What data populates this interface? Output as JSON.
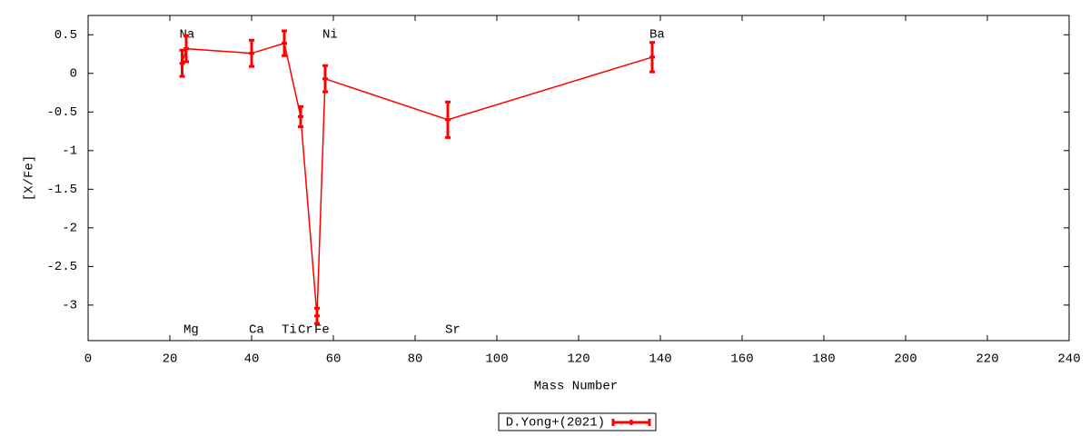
{
  "chart_data": {
    "type": "errorline",
    "xlabel": "Mass Number",
    "ylabel": "[X/Fe]",
    "x": [
      23,
      24,
      40,
      48,
      52,
      56,
      58,
      88,
      138
    ],
    "labels": [
      "Na",
      "Mg",
      "Ca",
      "Ti",
      "Cr",
      "Fe",
      "Ni",
      "Sr",
      "Ba"
    ],
    "label_side": [
      "top",
      "bottom",
      "bottom",
      "bottom",
      "bottom",
      "bottom",
      "top",
      "bottom",
      "top"
    ],
    "series": [
      {
        "name": "D.Yong+(2021)",
        "color": "#ff0000",
        "values": [
          0.13,
          0.32,
          0.26,
          0.39,
          -0.56,
          -3.14,
          -0.07,
          -0.6,
          0.21
        ],
        "errors": [
          0.17,
          0.17,
          0.17,
          0.16,
          0.13,
          0.1,
          0.17,
          0.23,
          0.19
        ]
      }
    ],
    "xlim": [
      0,
      240
    ],
    "xticks": [
      0,
      20,
      40,
      60,
      80,
      100,
      120,
      140,
      160,
      180,
      200,
      220,
      240
    ],
    "ylim": [
      -3.46,
      0.75
    ],
    "yticks": [
      0.5,
      0,
      -0.5,
      -1,
      -1.5,
      -2,
      -2.5,
      -3
    ],
    "grid": false,
    "legend": "bottom"
  }
}
